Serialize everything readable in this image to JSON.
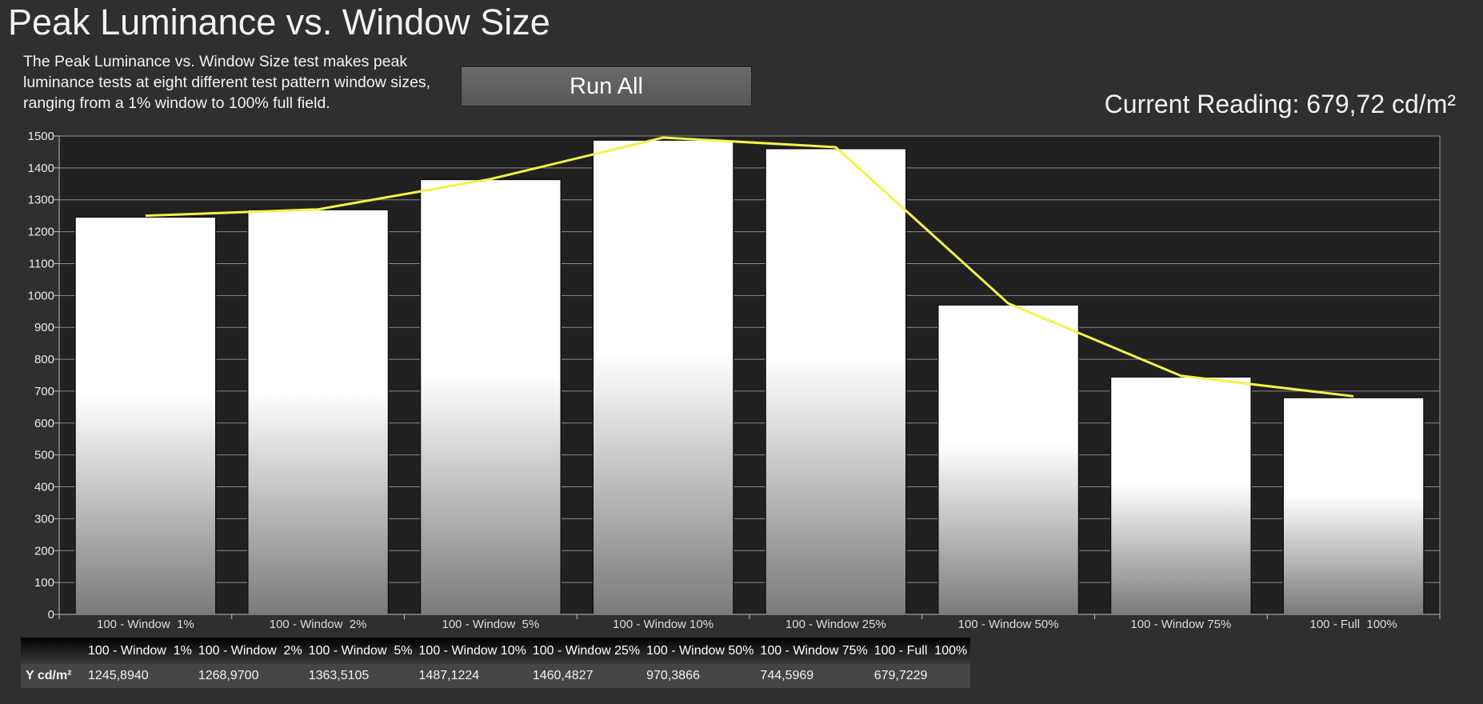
{
  "header": {
    "title": "Peak Luminance vs. Window Size",
    "description": "The Peak Luminance vs. Window Size test makes peak luminance tests at eight different test pattern window sizes, ranging from a 1% window to 100% full field.",
    "run_all_label": "Run All",
    "current_reading": "Current Reading: 679,72 cd/m²"
  },
  "chart_data": {
    "type": "bar",
    "categories": [
      "100 - Window  1%",
      "100 - Window  2%",
      "100 - Window  5%",
      "100 - Window 10%",
      "100 - Window 25%",
      "100 - Window 50%",
      "100 - Window 75%",
      "100 - Full  100%"
    ],
    "series": [
      {
        "values": [
          1245.894,
          1268.97,
          1363.5105,
          1487.1224,
          1460.4827,
          970.3866,
          744.5969,
          679.7229
        ]
      },
      {
        "type": "line",
        "values": [
          1250,
          1270,
          1365,
          1495,
          1465,
          975,
          748,
          684
        ]
      }
    ],
    "ylim": [
      0,
      1500
    ],
    "yticks": [
      0,
      100,
      200,
      300,
      400,
      500,
      600,
      700,
      800,
      900,
      1000,
      1100,
      1200,
      1300,
      1400,
      1500
    ],
    "grid": true,
    "colors": {
      "line": "#f2f24a",
      "bar_top": "#ffffff",
      "bar_bottom": "#7a7a7a",
      "plot_bg": "#212121"
    }
  },
  "table": {
    "headers": [
      "100 - Window  1%",
      "100 - Window  2%",
      "100 - Window  5%",
      "100 - Window 10%",
      "100 - Window 25%",
      "100 - Window 50%",
      "100 - Window 75%",
      "100 - Full  100%"
    ],
    "row_label": "Y cd/m²",
    "values": [
      "1245,8940",
      "1268,9700",
      "1363,5105",
      "1487,1224",
      "1460,4827",
      "970,3866",
      "744,5969",
      "679,7229"
    ]
  }
}
